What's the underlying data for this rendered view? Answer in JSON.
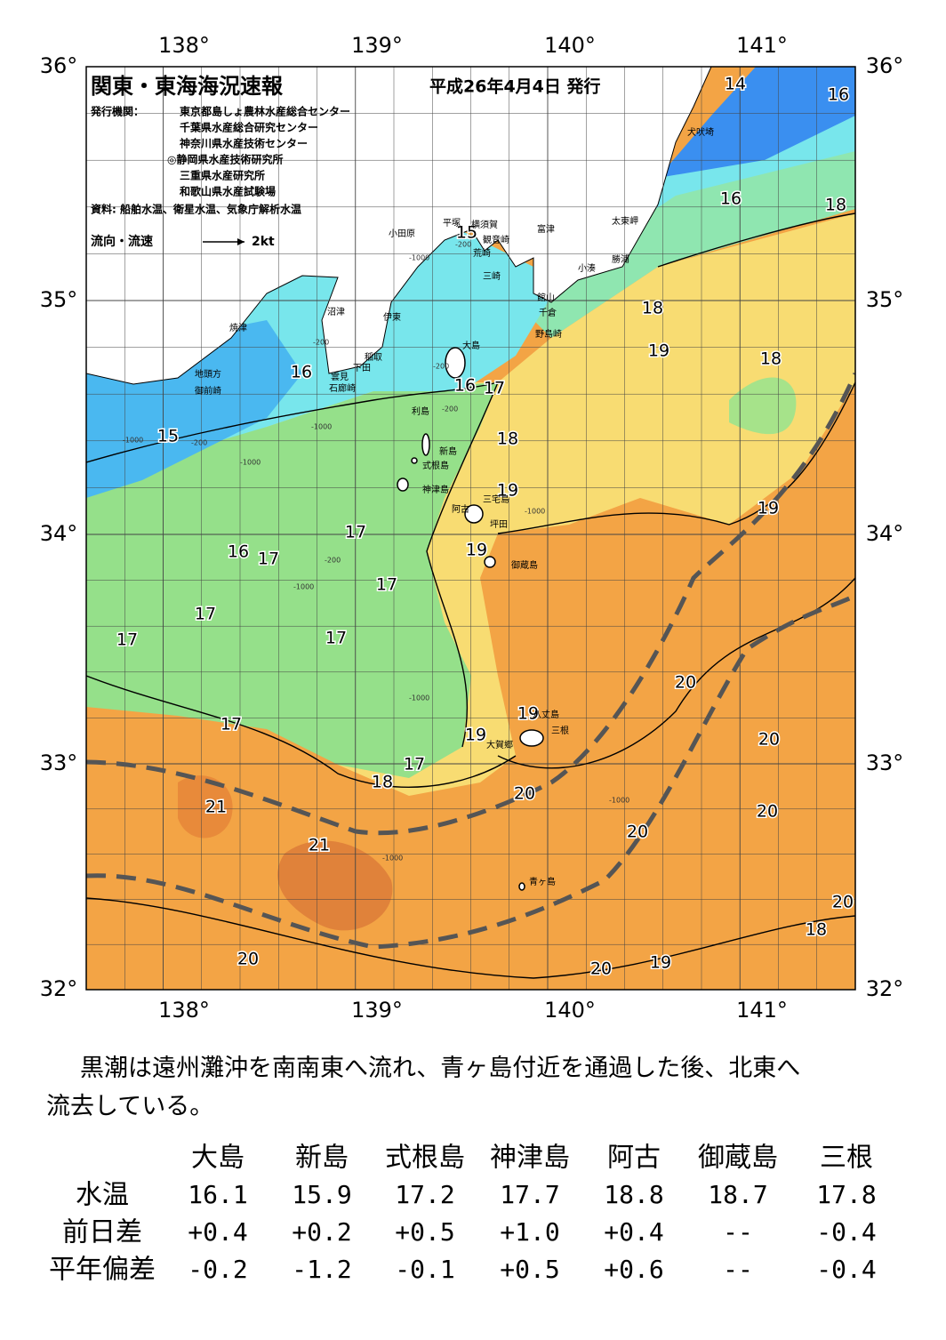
{
  "header": {
    "title": "関東・東海海況速報",
    "date": "平成26年4月4日 発行",
    "issuer_label": "発行機関：",
    "issuers": [
      "東京都島しょ農林水産総合センター",
      "千葉県水産総合研究センター",
      "神奈川県水産技術センター",
      "◎静岡県水産技術研究所",
      "三重県水産研究所",
      "和歌山県水産試験場"
    ],
    "sources": "資料: 船舶水温、衛星水温、気象庁解析水温",
    "legend_label": "流向・流速",
    "legend_speed": "2kt"
  },
  "map": {
    "lon_labels": [
      "138°",
      "139°",
      "140°",
      "141°"
    ],
    "lat_labels": [
      "36°",
      "35°",
      "34°",
      "33°",
      "32°"
    ],
    "contour_labels": [
      "14",
      "16",
      "16",
      "18",
      "18",
      "19",
      "18",
      "16",
      "16",
      "17",
      "18",
      "15",
      "19",
      "19",
      "17",
      "19",
      "16",
      "17",
      "17",
      "17",
      "17",
      "17",
      "20",
      "19",
      "17",
      "19",
      "20",
      "17",
      "18",
      "20",
      "21",
      "20",
      "20",
      "21",
      "20",
      "18",
      "20",
      "19",
      "20",
      "15"
    ],
    "place_names": [
      "平塚",
      "横須賀",
      "小田原",
      "観音崎",
      "富津",
      "荒崎",
      "三崎",
      "太東岬",
      "勝浦",
      "小湊",
      "館山",
      "千倉",
      "野島崎",
      "犬吠埼",
      "沼津",
      "伊東",
      "焼津",
      "稲取",
      "下田",
      "雲見",
      "石廊崎",
      "地頭方",
      "御前崎",
      "大島",
      "利島",
      "新島",
      "式根島",
      "神津島",
      "阿古",
      "三宅島",
      "坪田",
      "御蔵島",
      "八丈島",
      "三根",
      "大賀郷",
      "青ヶ島"
    ],
    "depth_labels": [
      "-200",
      "-1000",
      "-200",
      "-200",
      "-1000",
      "-200",
      "-1000",
      "-200",
      "-1000",
      "-1000",
      "-1000",
      "-200",
      "-1000",
      "-1000",
      "-1000"
    ]
  },
  "summary": "黒潮は遠州灘沖を南南東へ流れ、青ヶ島付近を通過した後、北東へ流去している。",
  "table": {
    "columns": [
      "大島",
      "新島",
      "式根島",
      "神津島",
      "阿古",
      "御蔵島",
      "三根"
    ],
    "rows": [
      {
        "label": "水温",
        "values": [
          "16.1",
          "15.9",
          "17.2",
          "17.7",
          "18.8",
          "18.7",
          "17.8"
        ]
      },
      {
        "label": "前日差",
        "values": [
          "+0.4",
          "+0.2",
          "+0.5",
          "+1.0",
          "+0.4",
          "--",
          "-0.4"
        ]
      },
      {
        "label": "平年偏差",
        "values": [
          "-0.2",
          "-1.2",
          "-0.1",
          "+0.5",
          "+0.6",
          "--",
          "-0.4"
        ]
      }
    ]
  }
}
